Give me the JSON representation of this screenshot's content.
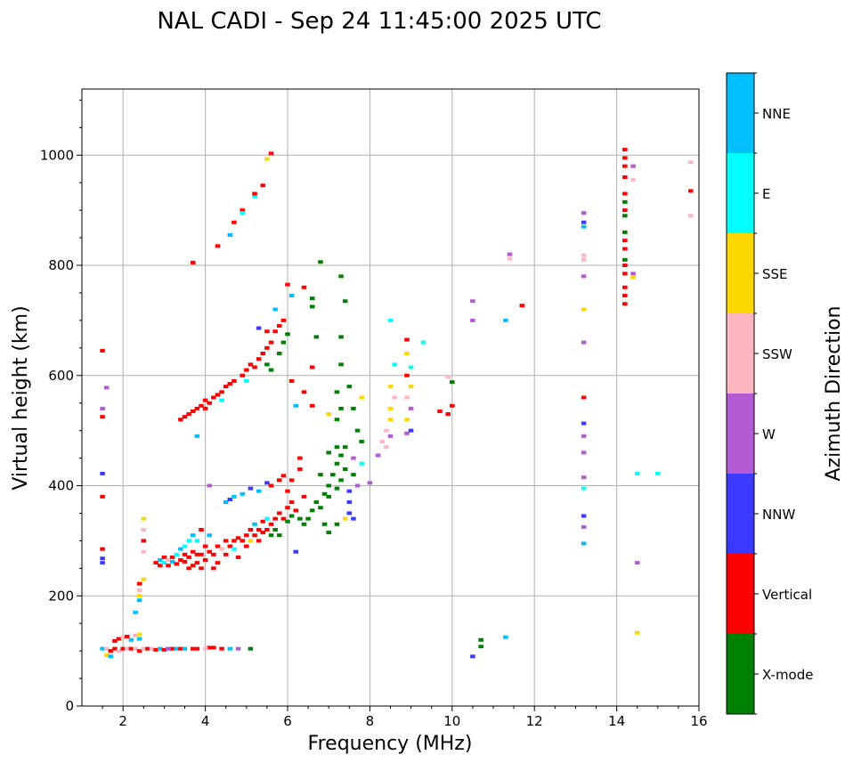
{
  "chart_data": {
    "type": "scatter",
    "title": "NAL CADI - Sep 24 11:45:00 2025 UTC",
    "xlabel": "Frequency (MHz)",
    "ylabel": "Virtual height (km)",
    "xlim": [
      1,
      16
    ],
    "ylim": [
      0,
      1120
    ],
    "xticks": [
      2,
      4,
      6,
      8,
      10,
      12,
      14,
      16
    ],
    "yticks": [
      0,
      200,
      400,
      600,
      800,
      1000
    ],
    "grid": true,
    "colorbar": {
      "label": "Azimuth Direction",
      "categories": [
        "X-mode",
        "Vertical",
        "NNW",
        "W",
        "SSW",
        "SSE",
        "E",
        "NNE"
      ],
      "colors": [
        "#008000",
        "#ff0000",
        "#3a3aff",
        "#b45ad4",
        "#ffb6c1",
        "#ffd700",
        "#00ffff",
        "#00bfff"
      ]
    },
    "point_format": [
      "frequency_mhz",
      "height_km",
      "category_index"
    ],
    "points": [
      [
        1.5,
        645,
        1
      ],
      [
        1.5,
        540,
        3
      ],
      [
        1.6,
        578,
        3
      ],
      [
        1.5,
        525,
        1
      ],
      [
        1.5,
        422,
        2
      ],
      [
        1.5,
        380,
        1
      ],
      [
        1.5,
        285,
        1
      ],
      [
        1.5,
        268,
        2
      ],
      [
        1.5,
        260,
        2
      ],
      [
        1.5,
        104,
        7
      ],
      [
        1.6,
        104,
        4
      ],
      [
        1.7,
        100,
        1
      ],
      [
        1.8,
        104,
        1
      ],
      [
        1.6,
        92,
        5
      ],
      [
        1.7,
        90,
        7
      ],
      [
        1.9,
        100,
        4
      ],
      [
        2.0,
        104,
        1
      ],
      [
        2.1,
        104,
        4
      ],
      [
        2.2,
        104,
        1
      ],
      [
        1.8,
        118,
        1
      ],
      [
        1.9,
        122,
        1
      ],
      [
        2.0,
        125,
        4
      ],
      [
        2.1,
        126,
        1
      ],
      [
        2.2,
        120,
        7
      ],
      [
        2.3,
        128,
        4
      ],
      [
        2.4,
        130,
        5
      ],
      [
        2.4,
        122,
        7
      ],
      [
        2.3,
        104,
        4
      ],
      [
        2.4,
        100,
        1
      ],
      [
        2.5,
        104,
        4
      ],
      [
        2.6,
        104,
        1
      ],
      [
        2.7,
        104,
        4
      ],
      [
        2.8,
        102,
        1
      ],
      [
        2.9,
        104,
        7
      ],
      [
        3.0,
        102,
        1
      ],
      [
        3.1,
        104,
        2
      ],
      [
        3.2,
        104,
        1
      ],
      [
        3.3,
        104,
        7
      ],
      [
        3.4,
        104,
        1
      ],
      [
        3.5,
        104,
        7
      ],
      [
        3.7,
        104,
        1
      ],
      [
        3.8,
        104,
        1
      ],
      [
        4.1,
        106,
        1
      ],
      [
        4.2,
        106,
        1
      ],
      [
        4.0,
        104,
        4
      ],
      [
        4.4,
        104,
        1
      ],
      [
        4.6,
        104,
        7
      ],
      [
        4.8,
        104,
        3
      ],
      [
        5.1,
        104,
        0
      ],
      [
        3.1,
        104,
        3
      ],
      [
        2.4,
        192,
        7
      ],
      [
        2.4,
        210,
        4
      ],
      [
        2.4,
        222,
        1
      ],
      [
        2.4,
        200,
        5
      ],
      [
        2.5,
        230,
        5
      ],
      [
        2.5,
        280,
        4
      ],
      [
        2.5,
        300,
        1
      ],
      [
        2.5,
        320,
        4
      ],
      [
        2.5,
        340,
        5
      ],
      [
        2.3,
        170,
        7
      ],
      [
        2.8,
        260,
        1
      ],
      [
        2.9,
        255,
        1
      ],
      [
        2.9,
        265,
        7
      ],
      [
        3.0,
        270,
        1
      ],
      [
        3.0,
        260,
        6
      ],
      [
        3.1,
        255,
        1
      ],
      [
        3.1,
        265,
        4
      ],
      [
        3.2,
        270,
        1
      ],
      [
        3.2,
        262,
        7
      ],
      [
        3.3,
        258,
        1
      ],
      [
        3.3,
        275,
        6
      ],
      [
        3.4,
        265,
        1
      ],
      [
        3.4,
        285,
        7
      ],
      [
        3.5,
        262,
        1
      ],
      [
        3.5,
        275,
        1
      ],
      [
        3.5,
        290,
        6
      ],
      [
        3.6,
        250,
        1
      ],
      [
        3.6,
        270,
        1
      ],
      [
        3.6,
        300,
        6
      ],
      [
        3.7,
        255,
        1
      ],
      [
        3.7,
        280,
        1
      ],
      [
        3.7,
        310,
        7
      ],
      [
        3.8,
        260,
        1
      ],
      [
        3.8,
        275,
        1
      ],
      [
        3.8,
        300,
        6
      ],
      [
        3.9,
        250,
        1
      ],
      [
        3.9,
        275,
        1
      ],
      [
        3.9,
        320,
        1
      ],
      [
        4.0,
        265,
        1
      ],
      [
        4.0,
        290,
        1
      ],
      [
        4.1,
        280,
        1
      ],
      [
        4.1,
        310,
        7
      ],
      [
        4.2,
        250,
        1
      ],
      [
        4.2,
        275,
        1
      ],
      [
        4.3,
        290,
        1
      ],
      [
        4.3,
        260,
        1
      ],
      [
        4.4,
        285,
        4
      ],
      [
        4.5,
        300,
        1
      ],
      [
        4.5,
        275,
        1
      ],
      [
        4.6,
        290,
        1
      ],
      [
        4.7,
        300,
        1
      ],
      [
        4.7,
        285,
        6
      ],
      [
        4.8,
        305,
        1
      ],
      [
        4.8,
        270,
        1
      ],
      [
        4.9,
        300,
        1
      ],
      [
        5.0,
        310,
        1
      ],
      [
        5.0,
        290,
        1
      ],
      [
        5.1,
        320,
        1
      ],
      [
        5.1,
        300,
        5
      ],
      [
        5.2,
        310,
        1
      ],
      [
        5.2,
        330,
        7
      ],
      [
        5.3,
        320,
        1
      ],
      [
        5.3,
        300,
        1
      ],
      [
        5.4,
        335,
        1
      ],
      [
        5.4,
        315,
        1
      ],
      [
        5.5,
        320,
        1
      ],
      [
        5.5,
        340,
        6
      ],
      [
        5.6,
        330,
        1
      ],
      [
        5.6,
        310,
        0
      ],
      [
        5.7,
        340,
        1
      ],
      [
        5.7,
        320,
        0
      ],
      [
        5.8,
        350,
        1
      ],
      [
        5.8,
        310,
        0
      ],
      [
        5.9,
        340,
        1
      ],
      [
        6.0,
        335,
        0
      ],
      [
        6.0,
        360,
        1
      ],
      [
        6.1,
        345,
        0
      ],
      [
        6.1,
        370,
        1
      ],
      [
        6.2,
        355,
        1
      ],
      [
        6.3,
        340,
        0
      ],
      [
        6.4,
        380,
        1
      ],
      [
        6.4,
        330,
        0
      ],
      [
        6.2,
        280,
        2
      ],
      [
        6.0,
        390,
        1
      ],
      [
        6.1,
        410,
        1
      ],
      [
        6.3,
        430,
        1
      ],
      [
        6.3,
        450,
        1
      ],
      [
        4.5,
        370,
        7
      ],
      [
        4.6,
        375,
        2
      ],
      [
        4.7,
        380,
        7
      ],
      [
        4.9,
        385,
        7
      ],
      [
        5.1,
        395,
        2
      ],
      [
        5.3,
        390,
        7
      ],
      [
        5.5,
        405,
        2
      ],
      [
        5.6,
        400,
        1
      ],
      [
        5.8,
        410,
        1
      ],
      [
        5.9,
        418,
        1
      ],
      [
        4.1,
        400,
        3
      ],
      [
        6.5,
        340,
        0
      ],
      [
        6.6,
        355,
        0
      ],
      [
        6.7,
        370,
        0
      ],
      [
        6.8,
        360,
        0
      ],
      [
        6.9,
        385,
        0
      ],
      [
        7.0,
        380,
        0
      ],
      [
        7.0,
        400,
        0
      ],
      [
        7.1,
        420,
        0
      ],
      [
        7.2,
        395,
        0
      ],
      [
        7.2,
        440,
        0
      ],
      [
        7.3,
        410,
        0
      ],
      [
        7.3,
        455,
        0
      ],
      [
        7.4,
        430,
        0
      ],
      [
        7.5,
        390,
        2
      ],
      [
        7.5,
        370,
        2
      ],
      [
        7.6,
        420,
        0
      ],
      [
        7.4,
        470,
        0
      ],
      [
        7.6,
        450,
        3
      ],
      [
        7.2,
        470,
        0
      ],
      [
        7.0,
        460,
        0
      ],
      [
        6.8,
        420,
        0
      ],
      [
        6.9,
        330,
        0
      ],
      [
        7.0,
        315,
        0
      ],
      [
        7.2,
        330,
        0
      ],
      [
        7.4,
        340,
        5
      ],
      [
        7.6,
        340,
        2
      ],
      [
        7.5,
        350,
        2
      ],
      [
        7.7,
        400,
        3
      ],
      [
        7.8,
        440,
        6
      ],
      [
        7.8,
        480,
        0
      ],
      [
        7.7,
        500,
        0
      ],
      [
        7.6,
        540,
        0
      ],
      [
        7.8,
        560,
        5
      ],
      [
        7.2,
        520,
        0
      ],
      [
        7.0,
        530,
        5
      ],
      [
        7.3,
        540,
        0
      ],
      [
        7.2,
        570,
        0
      ],
      [
        7.5,
        580,
        0
      ],
      [
        7.3,
        620,
        0
      ],
      [
        7.3,
        670,
        0
      ],
      [
        7.4,
        735,
        0
      ],
      [
        7.3,
        780,
        0
      ],
      [
        6.8,
        806,
        0
      ],
      [
        6.6,
        740,
        0
      ],
      [
        6.6,
        725,
        0
      ],
      [
        6.7,
        670,
        0
      ],
      [
        6.4,
        760,
        1
      ],
      [
        6.6,
        615,
        1
      ],
      [
        6.4,
        570,
        1
      ],
      [
        6.1,
        590,
        1
      ],
      [
        6.2,
        545,
        7
      ],
      [
        6.1,
        745,
        7
      ],
      [
        6.0,
        765,
        1
      ],
      [
        6.6,
        545,
        1
      ],
      [
        3.5,
        525,
        1
      ],
      [
        3.6,
        530,
        1
      ],
      [
        3.7,
        535,
        1
      ],
      [
        3.8,
        540,
        1
      ],
      [
        3.9,
        545,
        1
      ],
      [
        4.0,
        555,
        1
      ],
      [
        4.0,
        540,
        1
      ],
      [
        4.1,
        550,
        1
      ],
      [
        4.2,
        560,
        1
      ],
      [
        4.3,
        565,
        1
      ],
      [
        4.4,
        570,
        1
      ],
      [
        4.5,
        580,
        1
      ],
      [
        4.6,
        585,
        1
      ],
      [
        4.7,
        590,
        1
      ],
      [
        4.9,
        600,
        1
      ],
      [
        5.0,
        610,
        1
      ],
      [
        5.0,
        590,
        6
      ],
      [
        5.1,
        620,
        1
      ],
      [
        5.2,
        615,
        1
      ],
      [
        5.3,
        630,
        1
      ],
      [
        5.4,
        640,
        1
      ],
      [
        5.5,
        650,
        1
      ],
      [
        5.6,
        660,
        1
      ],
      [
        5.5,
        620,
        0
      ],
      [
        5.7,
        680,
        1
      ],
      [
        5.8,
        690,
        1
      ],
      [
        5.9,
        700,
        1
      ],
      [
        5.6,
        610,
        0
      ],
      [
        5.8,
        640,
        0
      ],
      [
        5.9,
        660,
        0
      ],
      [
        6.0,
        675,
        0
      ],
      [
        5.7,
        720,
        7
      ],
      [
        5.5,
        680,
        1
      ],
      [
        5.3,
        686,
        2
      ],
      [
        4.4,
        555,
        6
      ],
      [
        3.8,
        490,
        7
      ],
      [
        3.4,
        520,
        1
      ],
      [
        3.7,
        805,
        1
      ],
      [
        4.3,
        835,
        1
      ],
      [
        4.6,
        855,
        7
      ],
      [
        4.7,
        878,
        1
      ],
      [
        4.9,
        900,
        1
      ],
      [
        4.9,
        895,
        6
      ],
      [
        5.2,
        925,
        6
      ],
      [
        5.2,
        930,
        1
      ],
      [
        5.4,
        945,
        1
      ],
      [
        5.6,
        1003,
        1
      ],
      [
        5.5,
        993,
        5
      ],
      [
        8.3,
        480,
        4
      ],
      [
        8.4,
        500,
        4
      ],
      [
        8.5,
        520,
        5
      ],
      [
        8.5,
        540,
        5
      ],
      [
        8.5,
        490,
        3
      ],
      [
        8.6,
        560,
        4
      ],
      [
        8.5,
        580,
        5
      ],
      [
        8.6,
        620,
        6
      ],
      [
        8.5,
        700,
        6
      ],
      [
        8.4,
        470,
        4
      ],
      [
        8.2,
        455,
        3
      ],
      [
        8.9,
        495,
        3
      ],
      [
        9.0,
        500,
        2
      ],
      [
        8.9,
        520,
        5
      ],
      [
        9.0,
        540,
        3
      ],
      [
        8.9,
        560,
        4
      ],
      [
        9.0,
        580,
        5
      ],
      [
        8.9,
        600,
        1
      ],
      [
        9.0,
        615,
        6
      ],
      [
        8.9,
        640,
        5
      ],
      [
        8.9,
        665,
        1
      ],
      [
        9.3,
        660,
        6
      ],
      [
        8.0,
        405,
        3
      ],
      [
        9.9,
        530,
        1
      ],
      [
        10.0,
        545,
        1
      ],
      [
        10.0,
        588,
        0
      ],
      [
        9.7,
        535,
        1
      ],
      [
        9.9,
        598,
        4
      ],
      [
        10.5,
        700,
        3
      ],
      [
        10.5,
        735,
        3
      ],
      [
        11.3,
        700,
        7
      ],
      [
        11.4,
        820,
        3
      ],
      [
        11.4,
        812,
        4
      ],
      [
        11.7,
        727,
        1
      ],
      [
        10.7,
        120,
        0
      ],
      [
        10.7,
        108,
        0
      ],
      [
        10.5,
        90,
        2
      ],
      [
        11.3,
        125,
        7
      ],
      [
        13.2,
        295,
        7
      ],
      [
        13.2,
        325,
        3
      ],
      [
        13.2,
        345,
        2
      ],
      [
        13.2,
        395,
        6
      ],
      [
        13.2,
        415,
        3
      ],
      [
        13.2,
        460,
        3
      ],
      [
        13.2,
        490,
        3
      ],
      [
        13.2,
        513,
        2
      ],
      [
        13.2,
        560,
        1
      ],
      [
        13.2,
        660,
        3
      ],
      [
        13.2,
        720,
        5
      ],
      [
        13.2,
        780,
        3
      ],
      [
        13.2,
        810,
        4
      ],
      [
        13.2,
        818,
        4
      ],
      [
        13.2,
        870,
        7
      ],
      [
        13.2,
        878,
        2
      ],
      [
        13.2,
        895,
        3
      ],
      [
        14.2,
        1010,
        1
      ],
      [
        14.2,
        995,
        1
      ],
      [
        14.2,
        980,
        1
      ],
      [
        14.2,
        960,
        1
      ],
      [
        14.2,
        930,
        1
      ],
      [
        14.2,
        915,
        0
      ],
      [
        14.2,
        900,
        1
      ],
      [
        14.2,
        890,
        0
      ],
      [
        14.2,
        860,
        0
      ],
      [
        14.2,
        845,
        1
      ],
      [
        14.2,
        830,
        1
      ],
      [
        14.2,
        810,
        0
      ],
      [
        14.2,
        800,
        1
      ],
      [
        14.2,
        785,
        1
      ],
      [
        14.2,
        760,
        1
      ],
      [
        14.2,
        745,
        1
      ],
      [
        14.2,
        730,
        1
      ],
      [
        14.4,
        980,
        3
      ],
      [
        14.4,
        955,
        4
      ],
      [
        14.4,
        785,
        3
      ],
      [
        14.4,
        778,
        5
      ],
      [
        14.5,
        422,
        6
      ],
      [
        15.0,
        422,
        6
      ],
      [
        14.5,
        260,
        3
      ],
      [
        14.5,
        133,
        5
      ],
      [
        15.8,
        987,
        4
      ],
      [
        15.8,
        935,
        1
      ],
      [
        15.8,
        890,
        4
      ]
    ]
  }
}
